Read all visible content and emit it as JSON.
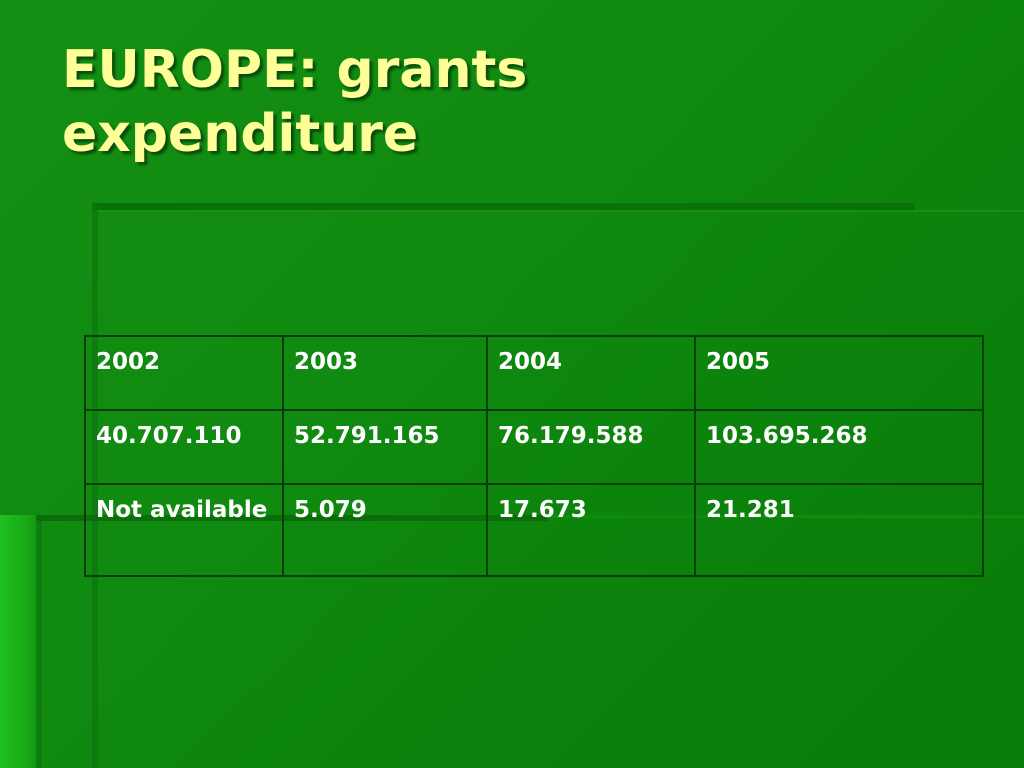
{
  "slide": {
    "title_line1": "EUROPE: grants",
    "title_line2": "expenditure",
    "colors": {
      "background": "#108a10",
      "title": "#ffff99",
      "table_text": "#ffffff",
      "table_border": "#0b3d0b"
    }
  },
  "table": {
    "rows": [
      [
        "2002",
        "2003",
        "2004",
        "2005"
      ],
      [
        "40.707.110",
        "52.791.165",
        "76.179.588",
        "103.695.268"
      ],
      [
        "Not available",
        "5.079",
        "17.673",
        "21.281"
      ]
    ]
  }
}
